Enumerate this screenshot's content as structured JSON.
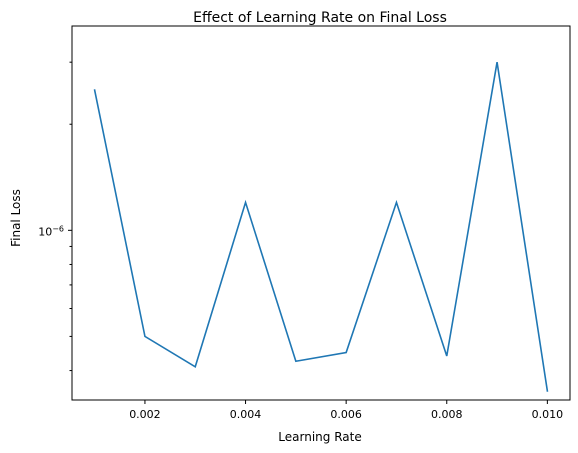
{
  "chart_data": {
    "type": "line",
    "title": "Effect of Learning Rate on Final Loss",
    "xlabel": "Learning Rate",
    "ylabel": "Final Loss",
    "x_ticks": [
      0.002,
      0.004,
      0.006,
      0.008,
      0.01
    ],
    "x_tick_labels": [
      "0.002",
      "0.004",
      "0.006",
      "0.008",
      "0.010"
    ],
    "xlim": [
      0.00055,
      0.01045
    ],
    "y_scale": "log",
    "ylim": [
      3.3e-07,
      3.8e-06
    ],
    "y_major_ticks": [
      1e-06
    ],
    "y_major_tick_labels": [
      {
        "base": "10",
        "exponent": "−6"
      }
    ],
    "y_minor_ticks": [
      4e-07,
      5e-07,
      6e-07,
      7e-07,
      8e-07,
      9e-07,
      2e-06,
      3e-06
    ],
    "series": [
      {
        "color": "#1f77b4",
        "x": [
          0.001,
          0.002,
          0.003,
          0.004,
          0.005,
          0.006,
          0.007,
          0.008,
          0.009,
          0.01
        ],
        "y": [
          2.5e-06,
          5e-07,
          4.1e-07,
          1.2e-06,
          4.25e-07,
          4.5e-07,
          1.2e-06,
          4.4e-07,
          3e-06,
          3.5e-07
        ]
      }
    ],
    "grid": false,
    "legend": "none"
  }
}
